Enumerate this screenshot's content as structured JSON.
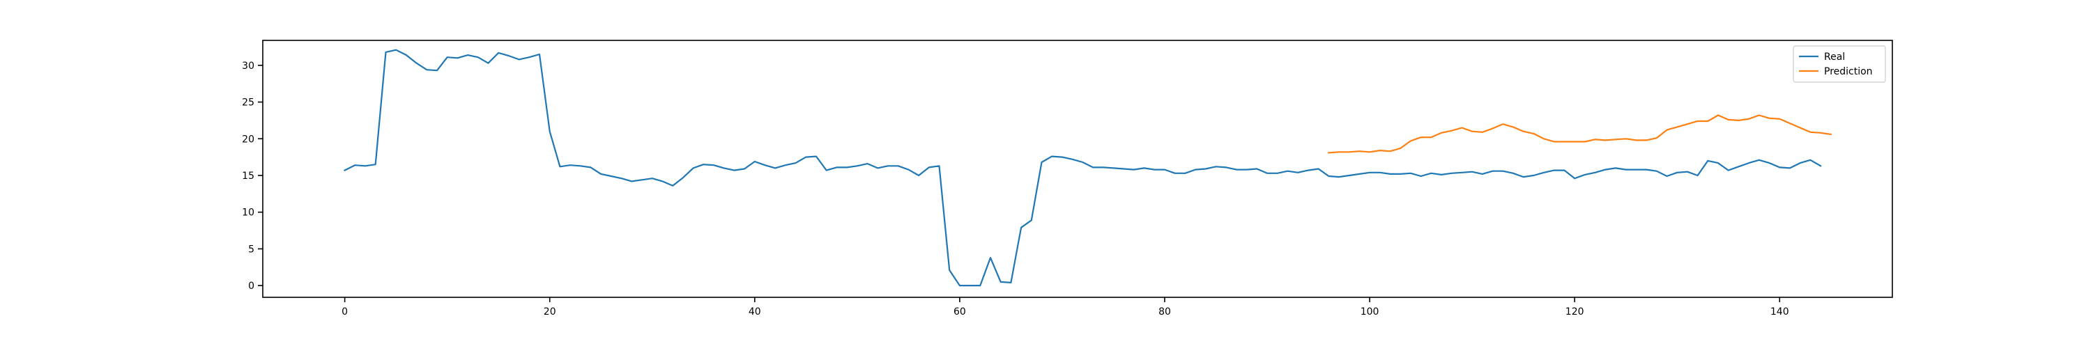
{
  "chart_data": {
    "type": "line",
    "title": "",
    "xlabel": "",
    "ylabel": "",
    "xlim": [
      -8,
      151
    ],
    "ylim": [
      -1.6,
      33.4
    ],
    "grid": false,
    "legend_position": "top-right",
    "x_ticks": [
      0,
      20,
      40,
      60,
      80,
      100,
      120,
      140
    ],
    "y_ticks": [
      0,
      5,
      10,
      15,
      20,
      25,
      30
    ],
    "series": [
      {
        "name": "Real",
        "color": "#1f77b4",
        "x_start": 0,
        "values": [
          15.7,
          16.4,
          16.3,
          16.5,
          31.8,
          32.1,
          31.4,
          30.3,
          29.4,
          29.3,
          31.1,
          31.0,
          31.4,
          31.1,
          30.3,
          31.7,
          31.3,
          30.8,
          31.1,
          31.5,
          21.0,
          16.2,
          16.4,
          16.3,
          16.1,
          15.2,
          14.9,
          14.6,
          14.2,
          14.4,
          14.6,
          14.2,
          13.6,
          14.7,
          16.0,
          16.5,
          16.4,
          16.0,
          15.7,
          15.9,
          16.9,
          16.4,
          16.0,
          16.4,
          16.7,
          17.5,
          17.6,
          15.7,
          16.1,
          16.1,
          16.3,
          16.6,
          16.0,
          16.3,
          16.3,
          15.8,
          15.0,
          16.1,
          16.3,
          2.1,
          0.0,
          0.0,
          0.0,
          3.8,
          0.5,
          0.4,
          7.9,
          8.9,
          16.8,
          17.6,
          17.5,
          17.2,
          16.8,
          16.1,
          16.1,
          16.0,
          15.9,
          15.8,
          16.0,
          15.8,
          15.8,
          15.3,
          15.3,
          15.8,
          15.9,
          16.2,
          16.1,
          15.8,
          15.8,
          15.9,
          15.3,
          15.3,
          15.6,
          15.4,
          15.7,
          15.9,
          14.9,
          14.8,
          15.0,
          15.2,
          15.4,
          15.4,
          15.2,
          15.2,
          15.3,
          14.9,
          15.3,
          15.1,
          15.3,
          15.4,
          15.5,
          15.2,
          15.6,
          15.6,
          15.3,
          14.8,
          15.0,
          15.4,
          15.7,
          15.7,
          14.6,
          15.1,
          15.4,
          15.8,
          16.0,
          15.8,
          15.8,
          15.8,
          15.6,
          14.9,
          15.4,
          15.5,
          15.0,
          17.0,
          16.7,
          15.7,
          16.2,
          16.7,
          17.1,
          16.7,
          16.1,
          16.0,
          16.7,
          17.1,
          16.3
        ]
      },
      {
        "name": "Prediction",
        "color": "#ff7f0e",
        "x_start": 96,
        "values": [
          18.1,
          18.2,
          18.2,
          18.3,
          18.2,
          18.4,
          18.3,
          18.7,
          19.7,
          20.2,
          20.2,
          20.8,
          21.1,
          21.5,
          21.0,
          20.9,
          21.4,
          22.0,
          21.6,
          21.0,
          20.7,
          20.0,
          19.6,
          19.6,
          19.6,
          19.6,
          19.9,
          19.8,
          19.9,
          20.0,
          19.8,
          19.8,
          20.1,
          21.2,
          21.6,
          22.0,
          22.4,
          22.4,
          23.2,
          22.6,
          22.5,
          22.7,
          23.2,
          22.8,
          22.7,
          22.1,
          21.5,
          20.9,
          20.8,
          20.6
        ]
      }
    ]
  }
}
